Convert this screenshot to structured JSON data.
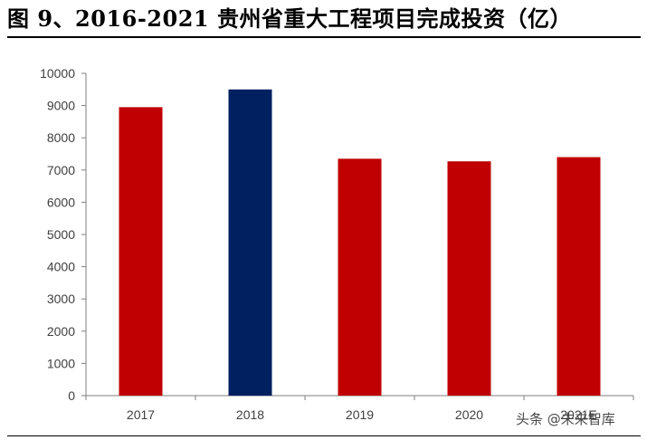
{
  "title": "图 9、2016-2021 贵州省重大工程项目完成投资（亿）",
  "watermark": "头条 @未来智库",
  "colors": {
    "primary": "#c00000",
    "highlight": "#002060",
    "axis": "#7f7f7f",
    "tick_text": "#404040"
  },
  "chart_data": {
    "type": "bar",
    "title": "",
    "xlabel": "",
    "ylabel": "",
    "categories": [
      "2017",
      "2018",
      "2019",
      "2020",
      "2021E"
    ],
    "values": [
      8950,
      9500,
      7350,
      7270,
      7400
    ],
    "bar_colors": [
      "#c00000",
      "#002060",
      "#c00000",
      "#c00000",
      "#c00000"
    ],
    "ylim": [
      0,
      10000
    ],
    "yticks": [
      "0",
      "1000",
      "2000",
      "3000",
      "4000",
      "5000",
      "6000",
      "7000",
      "8000",
      "9000",
      "10000"
    ],
    "grid": false,
    "legend": "none"
  }
}
